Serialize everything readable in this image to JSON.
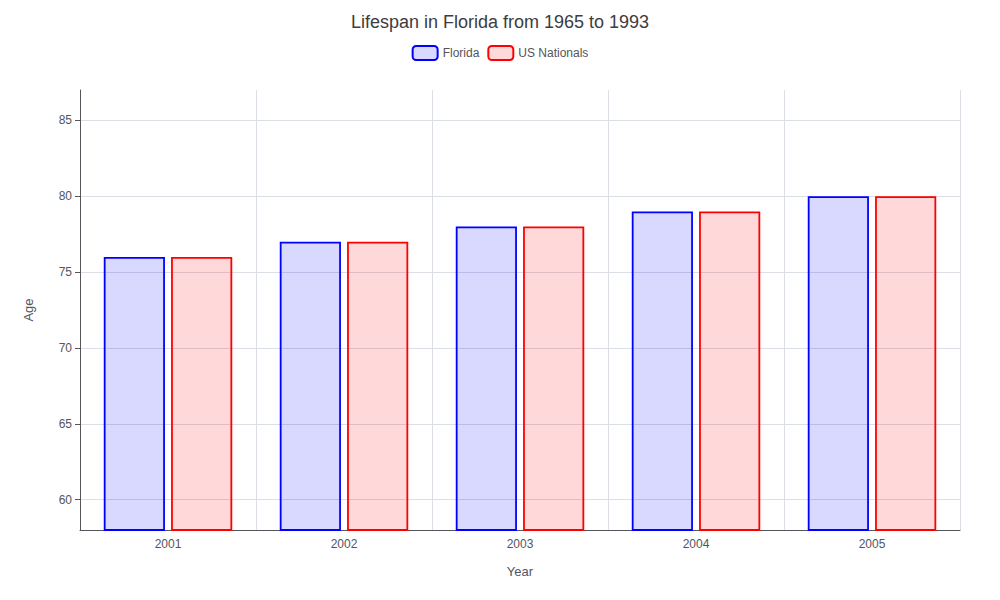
{
  "chart_data": {
    "type": "bar",
    "title": "Lifespan in Florida from 1965 to 1993",
    "xlabel": "Year",
    "ylabel": "Age",
    "categories": [
      "2001",
      "2002",
      "2003",
      "2004",
      "2005"
    ],
    "series": [
      {
        "name": "Florida",
        "color": "#0000ff",
        "values": [
          76,
          77,
          78,
          79,
          80
        ]
      },
      {
        "name": "US Nationals",
        "color": "#ff0000",
        "values": [
          76,
          77,
          78,
          79,
          80
        ]
      }
    ],
    "ylim": [
      58,
      87
    ],
    "yticks": [
      60,
      65,
      70,
      75,
      80,
      85
    ],
    "grid": true,
    "legend": "top"
  }
}
